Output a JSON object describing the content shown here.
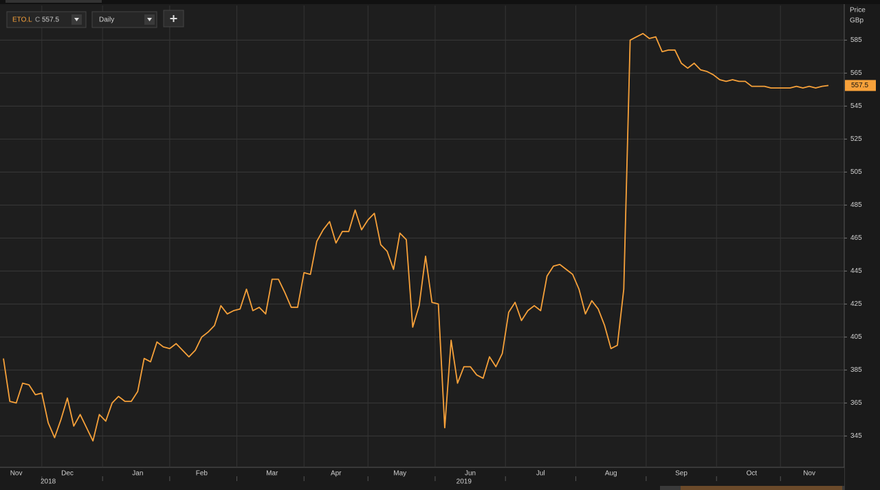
{
  "chart_data": {
    "type": "line",
    "toolbar": {
      "close_prefix": "C",
      "interval": "Daily"
    },
    "y_axis_title": "Price",
    "y_axis_unit": "GBp",
    "categories": [
      null,
      null,
      "Nov",
      null,
      null,
      null,
      null,
      null,
      null,
      null,
      "Dec",
      null,
      null,
      null,
      null,
      null,
      null,
      null,
      null,
      null,
      null,
      "Jan",
      null,
      null,
      null,
      null,
      null,
      null,
      null,
      null,
      null,
      "Feb",
      null,
      null,
      null,
      null,
      null,
      null,
      null,
      null,
      null,
      null,
      "Mar",
      null,
      null,
      null,
      null,
      null,
      null,
      null,
      null,
      null,
      "Apr",
      null,
      null,
      null,
      null,
      null,
      null,
      null,
      null,
      null,
      "May",
      null,
      null,
      null,
      null,
      null,
      null,
      null,
      null,
      null,
      null,
      "Jun",
      null,
      null,
      null,
      null,
      null,
      null,
      null,
      null,
      null,
      null,
      "Jul",
      null,
      null,
      null,
      null,
      null,
      null,
      null,
      null,
      null,
      null,
      "Aug",
      null,
      null,
      null,
      null,
      null,
      null,
      null,
      null,
      null,
      null,
      "Sep",
      null,
      null,
      null,
      null,
      null,
      null,
      null,
      null,
      null,
      null,
      "Oct",
      null,
      null,
      null,
      null,
      null,
      null,
      null,
      null,
      "Nov",
      null,
      null,
      null
    ],
    "years": [
      null,
      null,
      null,
      null,
      null,
      null,
      null,
      "2018",
      null,
      null,
      null,
      null,
      null,
      null,
      null,
      null,
      null,
      null,
      null,
      null,
      null,
      null,
      null,
      null,
      null,
      null,
      null,
      null,
      null,
      null,
      null,
      null,
      null,
      null,
      null,
      null,
      null,
      null,
      null,
      null,
      null,
      null,
      null,
      null,
      null,
      null,
      null,
      null,
      null,
      null,
      null,
      null,
      null,
      null,
      null,
      null,
      null,
      null,
      null,
      null,
      null,
      null,
      null,
      null,
      null,
      null,
      null,
      null,
      null,
      null,
      null,
      null,
      "2019",
      null,
      null,
      null,
      null,
      null,
      null,
      null,
      null,
      null,
      null,
      null,
      null,
      null,
      null,
      null,
      null,
      null,
      null,
      null,
      null,
      null,
      null,
      null,
      null,
      null,
      null,
      null,
      null,
      null,
      null,
      null,
      null,
      null,
      null,
      null,
      null,
      null,
      null,
      null,
      null,
      null,
      null,
      null,
      null,
      null,
      null,
      null,
      null,
      null,
      null,
      null,
      null,
      null,
      null,
      null,
      null,
      null
    ],
    "series": [
      {
        "name": "ETO.L",
        "color": "#f7a13a",
        "values": [
          392,
          366,
          365,
          377,
          376,
          370,
          371,
          353,
          344,
          355,
          368,
          351,
          358,
          350,
          342,
          358,
          354,
          365,
          369,
          366,
          366,
          372,
          392,
          390,
          402,
          399,
          398,
          401,
          397,
          393,
          397,
          405,
          408,
          412,
          424,
          419,
          421,
          422,
          434,
          421,
          423,
          419,
          440,
          440,
          432,
          423,
          423,
          444,
          443,
          463,
          470,
          475,
          462,
          469,
          469,
          482,
          470,
          476,
          480,
          461,
          457,
          446,
          468,
          464,
          411,
          424,
          454,
          426,
          425,
          350,
          403,
          377,
          387,
          387,
          382,
          380,
          393,
          387,
          395,
          420,
          426,
          415,
          421,
          424,
          421,
          442,
          448,
          449,
          446,
          443,
          434,
          419,
          427,
          422,
          412,
          398,
          400,
          434,
          585,
          587,
          589,
          586,
          587,
          578,
          579,
          579,
          571,
          568,
          571,
          567,
          566,
          564,
          561,
          560,
          561,
          560,
          560,
          557,
          557,
          557,
          556,
          556,
          556,
          556,
          557,
          556,
          557,
          556,
          557,
          557.5
        ]
      }
    ],
    "ylim": [
      326,
      606
    ],
    "yticks": [
      345,
      365,
      385,
      405,
      425,
      445,
      465,
      485,
      505,
      525,
      545,
      565,
      585
    ],
    "grid": true
  }
}
